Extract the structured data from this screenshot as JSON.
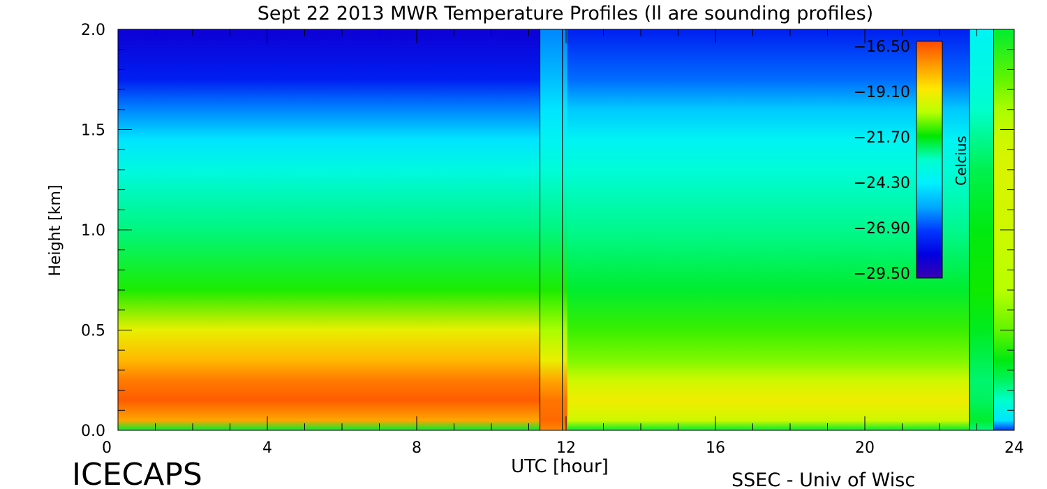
{
  "chart_data": {
    "type": "heatmap",
    "title": "Sept 22 2013 MWR Temperature Profiles (ll are sounding profiles)",
    "xlabel": "UTC [hour]",
    "ylabel": "Height [km]",
    "xlim": [
      0,
      24
    ],
    "ylim": [
      0,
      2.0
    ],
    "x_ticks": [
      "0",
      "4",
      "8",
      "12",
      "16",
      "20",
      "24"
    ],
    "y_ticks": [
      "0.0",
      "0.5",
      "1.0",
      "1.5",
      "2.0"
    ],
    "colorbar": {
      "label": "Celcius",
      "range": [
        -29.5,
        -16.5
      ],
      "tick_labels": [
        "-16.50",
        "-19.10",
        "-21.70",
        "-24.30",
        "-26.90",
        "-29.50"
      ],
      "colors": [
        "#ff4a00",
        "#ff9a00",
        "#ffe800",
        "#b8ff00",
        "#00e800",
        "#00ffcc",
        "#00f0ff",
        "#00a8ff",
        "#0038ff",
        "#0000e0",
        "#3a00b0"
      ]
    },
    "sounding_times_utc": [
      11.3,
      11.9,
      22.8,
      23.45
    ],
    "height_levels_km": [
      0.0,
      0.05,
      0.15,
      0.25,
      0.35,
      0.5,
      0.7,
      1.0,
      1.3,
      1.45,
      1.6,
      1.75,
      2.0
    ],
    "temperature_profile_periods": [
      {
        "utc_start": 0.0,
        "utc_end": 11.3,
        "temps_c": [
          -22.0,
          -18.0,
          -16.8,
          -17.3,
          -18.3,
          -19.5,
          -21.5,
          -22.5,
          -23.5,
          -24.5,
          -26.0,
          -27.5,
          -28.5
        ]
      },
      {
        "utc_start": 11.9,
        "utc_end": 22.8,
        "temps_c": [
          -22.0,
          -20.0,
          -19.4,
          -20.0,
          -20.8,
          -21.3,
          -22.0,
          -22.6,
          -23.3,
          -24.0,
          -25.0,
          -26.3,
          -27.5
        ]
      }
    ]
  },
  "footer": {
    "left": "ICECAPS",
    "right": "SSEC - Univ of Wisc"
  }
}
